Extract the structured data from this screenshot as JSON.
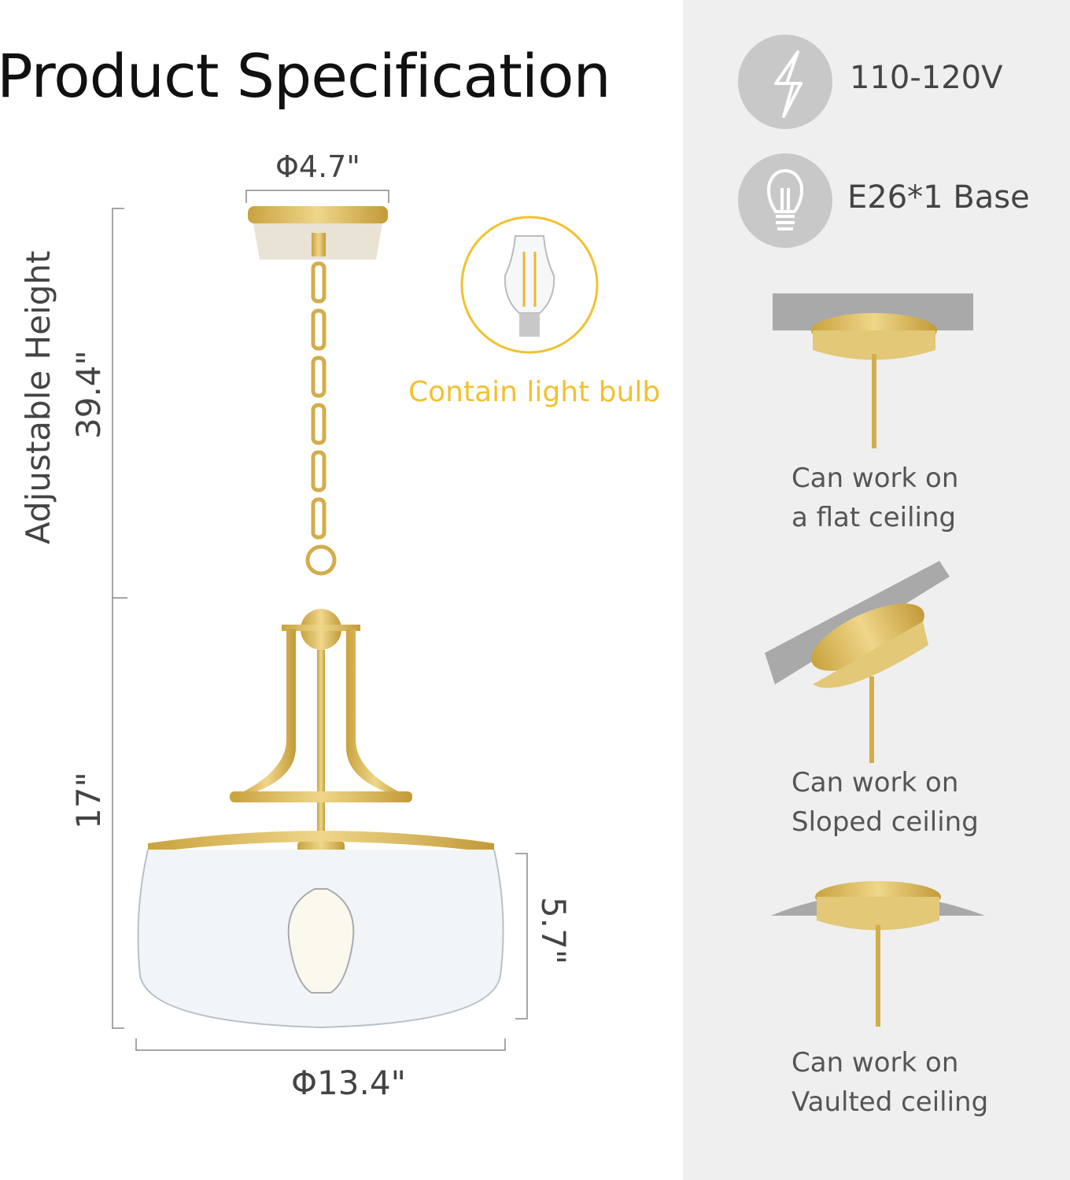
{
  "title": "Product Specification",
  "dimensions": {
    "canopy_diameter": "Φ4.7\"",
    "adjustable_height_label": "Adjustable Height",
    "adjustable_height_value": "39.4\"",
    "fixture_height": "17\"",
    "shade_height": "5.7\"",
    "shade_diameter": "Φ13.4\""
  },
  "bulb_callout": {
    "label": "Contain light bulb",
    "color": "#f2c12e"
  },
  "specs": [
    {
      "icon": "lightning-icon",
      "label": "110-120V"
    },
    {
      "icon": "light-bulb-icon",
      "label": "E26*1 Base"
    }
  ],
  "ceiling_types": [
    {
      "type": "flat",
      "line1": "Can work on",
      "line2": "a flat ceiling"
    },
    {
      "type": "sloped",
      "line1": "Can work on",
      "line2": "Sloped ceiling"
    },
    {
      "type": "vaulted",
      "line1": "Can work on",
      "line2": "Vaulted ceiling"
    }
  ],
  "colors": {
    "gold": "#d8b54e",
    "panel": "#efefef",
    "icon_circle": "#c8c8c8"
  }
}
